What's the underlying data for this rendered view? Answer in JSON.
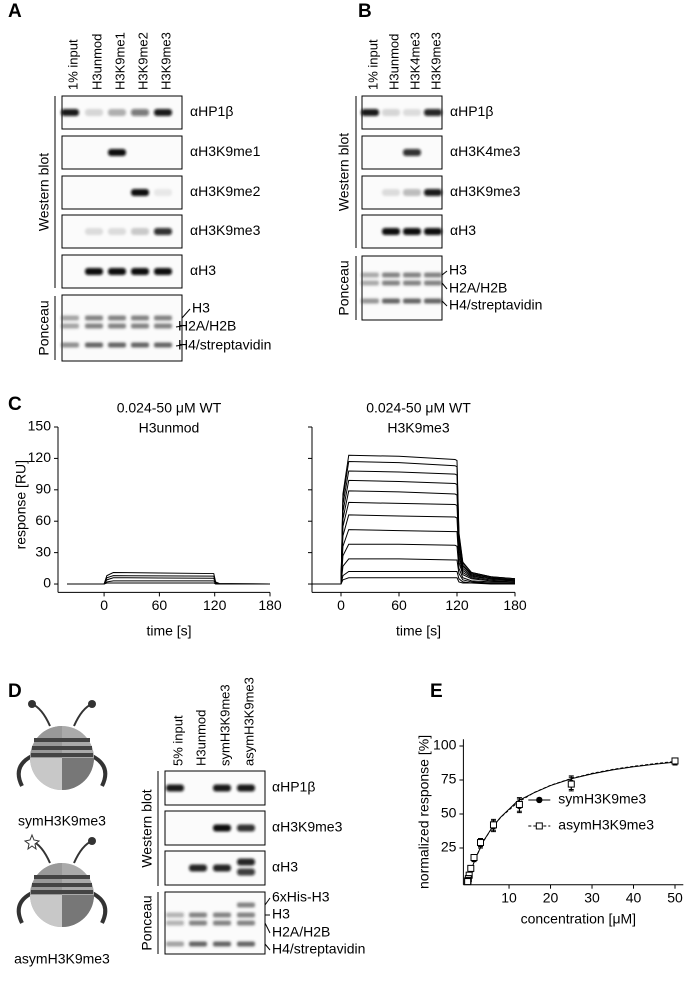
{
  "panel_labels": {
    "a": "A",
    "b": "B",
    "c": "C",
    "d": "D",
    "e": "E"
  },
  "blot_a": {
    "lanes": [
      "1% input",
      "H3unmod",
      "H3K9me1",
      "H3K9me2",
      "H3K9me3"
    ],
    "western_label": "Western blot",
    "ponceau_label": "Ponceau",
    "antibodies": [
      "αHP1β",
      "αH3K9me1",
      "αH3K9me2",
      "αH3K9me3",
      "αH3"
    ],
    "ponceau_bands": [
      "H3",
      "H2A/H2B",
      "H4/streptavidin"
    ]
  },
  "blot_b": {
    "lanes": [
      "1% input",
      "H3unmod",
      "H3K4me3",
      "H3K9me3"
    ],
    "western_label": "Western blot",
    "ponceau_label": "Ponceau",
    "antibodies": [
      "αHP1β",
      "αH3K4me3",
      "αH3K9me3",
      "αH3"
    ],
    "ponceau_bands": [
      "H3",
      "H2A/H2B",
      "H4/streptavidin"
    ]
  },
  "blot_d": {
    "lanes": [
      "5% input",
      "H3unmod",
      "symH3K9me3",
      "asymH3K9me3"
    ],
    "western_label": "Western blot",
    "ponceau_label": "Ponceau",
    "antibodies": [
      "αHP1β",
      "αH3K9me3",
      "αH3"
    ],
    "ponceau_bands": [
      "6xHis-H3",
      "H3",
      "H2A/H2B",
      "H4/streptavidin"
    ]
  },
  "nucleosomes": [
    "symH3K9me3",
    "asymH3K9me3"
  ],
  "chart_data": [
    {
      "type": "line",
      "title": "0.024-50 μM WT",
      "subtitle": "H3unmod",
      "ylabel": "response [RU]",
      "xlabel": "time [s]",
      "color": "#000000",
      "xlim": [
        -50,
        180
      ],
      "ylim": [
        -8,
        150
      ],
      "xticks": [
        0,
        60,
        120,
        180
      ],
      "yticks": [
        0,
        30,
        60,
        90,
        120,
        150
      ],
      "x": [
        -40,
        0,
        3,
        10,
        60,
        119,
        121,
        125,
        180
      ],
      "series": [
        {
          "values": [
            0,
            0,
            8,
            11,
            10.5,
            10,
            2,
            0.5,
            0
          ]
        },
        {
          "values": [
            0,
            0,
            6,
            8,
            7.8,
            7.5,
            1.5,
            0.3,
            0
          ]
        },
        {
          "values": [
            0,
            0,
            4,
            6,
            5.8,
            5.5,
            1,
            0.2,
            0
          ]
        },
        {
          "values": [
            0,
            0,
            2,
            3,
            3,
            3,
            0.5,
            0,
            0
          ]
        },
        {
          "values": [
            0,
            0,
            1,
            1,
            1,
            1,
            0,
            0,
            0
          ]
        }
      ]
    },
    {
      "type": "line",
      "title": "0.024-50 μM WT",
      "subtitle": "H3K9me3",
      "xlabel": "time [s]",
      "color": "#000000",
      "xlim": [
        -30,
        180
      ],
      "ylim": [
        -8,
        150
      ],
      "xticks": [
        0,
        60,
        120,
        180
      ],
      "yticks": [
        0,
        30,
        60,
        90,
        120,
        150
      ],
      "ytick_labels": false,
      "x": [
        -30,
        0,
        2,
        8,
        60,
        118,
        120,
        122,
        126,
        135,
        155,
        180
      ],
      "series": [
        {
          "values": [
            0,
            0,
            86,
            123,
            122,
            119,
            118,
            49,
            21,
            11,
            7,
            5
          ]
        },
        {
          "values": [
            0,
            0,
            82,
            117,
            116,
            113,
            112,
            47,
            20,
            11,
            7,
            5
          ]
        },
        {
          "values": [
            0,
            0,
            76,
            108,
            107,
            105,
            104,
            43,
            18,
            10,
            6,
            4
          ]
        },
        {
          "values": [
            0,
            0,
            69,
            99,
            98,
            96,
            95,
            40,
            17,
            9,
            6,
            4
          ]
        },
        {
          "values": [
            0,
            0,
            62,
            89,
            88,
            86,
            85,
            36,
            15,
            8,
            5,
            4
          ]
        },
        {
          "values": [
            0,
            0,
            55,
            78,
            77,
            76,
            75,
            31,
            13,
            7,
            5,
            3
          ]
        },
        {
          "values": [
            0,
            0,
            46,
            66,
            65,
            64,
            63,
            26,
            11,
            6,
            4,
            3
          ]
        },
        {
          "values": [
            0,
            0,
            36,
            52,
            51,
            50,
            50,
            21,
            9,
            5,
            3,
            2
          ]
        },
        {
          "values": [
            0,
            0,
            27,
            38,
            38,
            37,
            36,
            15,
            6,
            3,
            2,
            2
          ]
        },
        {
          "values": [
            0,
            0,
            17,
            24,
            24,
            23,
            23,
            10,
            4,
            2,
            1,
            1
          ]
        },
        {
          "values": [
            0,
            0,
            8,
            12,
            12,
            12,
            12,
            5,
            2,
            1,
            1,
            0
          ]
        },
        {
          "values": [
            0,
            0,
            4,
            6,
            6,
            6,
            6,
            2,
            1,
            1,
            0,
            0
          ]
        }
      ]
    },
    {
      "type": "scatter",
      "xlabel": "concentration [μM]",
      "ylabel": "normalized response [%]",
      "color": "#000000",
      "xlim": [
        -1,
        52
      ],
      "ylim": [
        -2,
        105
      ],
      "xticks": [
        10,
        20,
        30,
        40,
        50
      ],
      "yticks": [
        25,
        50,
        75,
        100
      ],
      "legend": "right",
      "x": [
        50,
        25,
        12.5,
        6.25,
        3.125,
        1.56,
        0.78,
        0.39,
        0.195,
        0.098,
        0.049,
        0.024
      ],
      "fit_x": [
        0,
        1,
        2,
        4,
        6,
        8,
        12,
        16,
        20,
        25,
        30,
        35,
        40,
        45,
        50
      ],
      "series": [
        {
          "name": "symH3K9me3",
          "marker": "circle",
          "dash": false,
          "values": [
            88,
            73,
            56,
            41,
            28,
            17,
            9,
            4,
            2,
            1,
            0.5,
            0.2
          ],
          "errors": [
            2,
            5,
            5,
            4,
            3,
            2,
            1.5,
            1,
            1,
            0.5,
            0.5,
            0.5
          ],
          "fit": [
            0,
            9.9,
            18.1,
            30.9,
            40.4,
            47.7,
            59.4,
            65.6,
            70.9,
            75.9,
            79.5,
            82.4,
            84.7,
            86.6,
            88.1
          ]
        },
        {
          "name": "asymH3K9me3",
          "marker": "square",
          "dash": true,
          "values": [
            89,
            72,
            57,
            42,
            29,
            18,
            10,
            5,
            2.5,
            1.2,
            0.6,
            0.3
          ],
          "errors": [
            2,
            5,
            5,
            4,
            3,
            2,
            1.5,
            1,
            1,
            0.5,
            0.5,
            0.5
          ],
          "fit": [
            0,
            9.8,
            18.0,
            30.7,
            40.3,
            47.6,
            58.3,
            65.7,
            71.1,
            76.1,
            79.9,
            82.8,
            85.1,
            87.0,
            88.6
          ]
        }
      ]
    }
  ]
}
